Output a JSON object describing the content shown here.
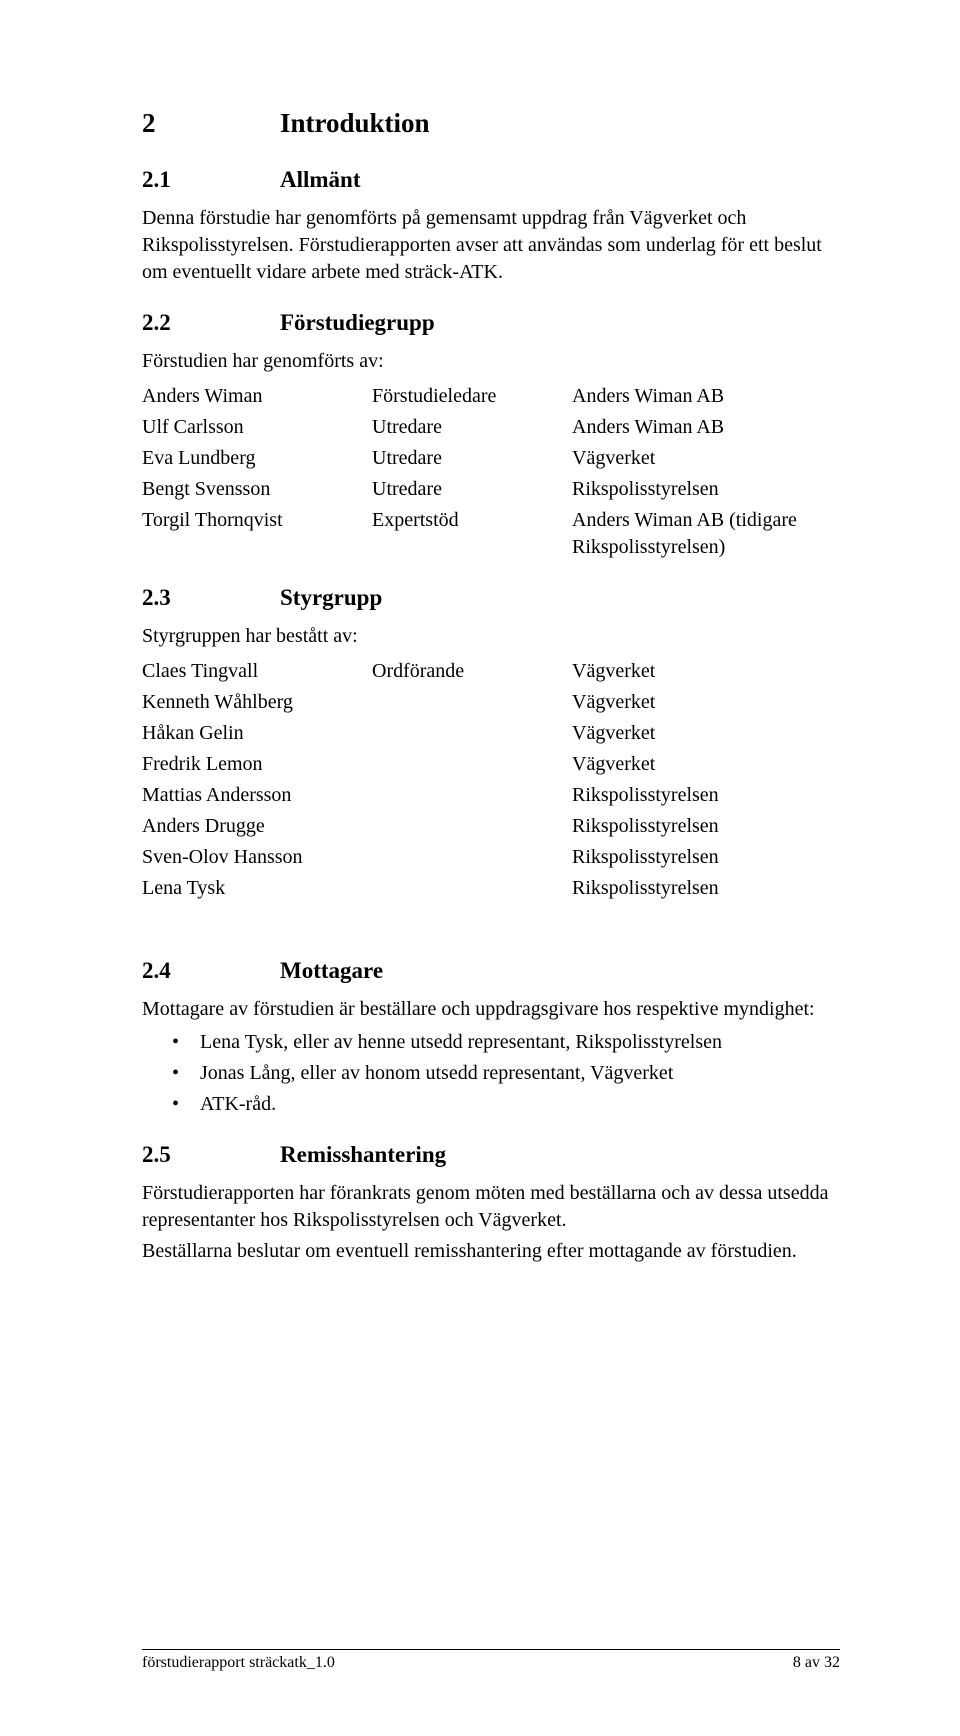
{
  "h1": {
    "num": "2",
    "title": "Introduktion"
  },
  "s21": {
    "num": "2.1",
    "title": "Allmänt",
    "para": "Denna förstudie har genomförts på gemensamt uppdrag från Vägverket och Rikspolisstyrelsen. Förstudierapporten avser att användas som underlag för ett beslut om eventuellt vidare arbete med sträck-ATK."
  },
  "s22": {
    "num": "2.2",
    "title": "Förstudiegrupp",
    "intro": "Förstudien har genomförts av:",
    "rows": [
      {
        "c1": "Anders Wiman",
        "c2": "Förstudieledare",
        "c3": "Anders Wiman AB"
      },
      {
        "c1": "Ulf Carlsson",
        "c2": "Utredare",
        "c3": "Anders Wiman AB"
      },
      {
        "c1": "Eva Lundberg",
        "c2": "Utredare",
        "c3": "Vägverket"
      },
      {
        "c1": "Bengt Svensson",
        "c2": "Utredare",
        "c3": "Rikspolisstyrelsen"
      },
      {
        "c1": "Torgil Thornqvist",
        "c2": "Expertstöd",
        "c3": "Anders Wiman AB (tidigare Rikspolisstyrelsen)"
      }
    ]
  },
  "s23": {
    "num": "2.3",
    "title": "Styrgrupp",
    "intro": "Styrgruppen har bestått av:",
    "rows": [
      {
        "c1": "Claes Tingvall",
        "c2": "Ordförande",
        "c3": "Vägverket"
      },
      {
        "c1": "Kenneth Wåhlberg",
        "c2": "",
        "c3": "Vägverket"
      },
      {
        "c1": "Håkan Gelin",
        "c2": "",
        "c3": "Vägverket"
      },
      {
        "c1": "Fredrik Lemon",
        "c2": "",
        "c3": "Vägverket"
      },
      {
        "c1": "Mattias Andersson",
        "c2": "",
        "c3": "Rikspolisstyrelsen"
      },
      {
        "c1": "Anders Drugge",
        "c2": "",
        "c3": "Rikspolisstyrelsen"
      },
      {
        "c1": "Sven-Olov Hansson",
        "c2": "",
        "c3": "Rikspolisstyrelsen"
      },
      {
        "c1": "Lena Tysk",
        "c2": "",
        "c3": "Rikspolisstyrelsen"
      }
    ]
  },
  "s24": {
    "num": "2.4",
    "title": "Mottagare",
    "para": "Mottagare av förstudien är beställare och uppdragsgivare hos respektive myndighet:",
    "bullets": [
      "Lena Tysk, eller av henne utsedd representant, Rikspolisstyrelsen",
      "Jonas Lång, eller av honom utsedd representant, Vägverket",
      "ATK-råd."
    ]
  },
  "s25": {
    "num": "2.5",
    "title": "Remisshantering",
    "p1": "Förstudierapporten har förankrats genom möten med beställarna och av dessa utsedda representanter hos Rikspolisstyrelsen och Vägverket.",
    "p2": "Beställarna beslutar om eventuell remisshantering efter mottagande av förstudien."
  },
  "footer": {
    "left": "förstudierapport sträckatk_1.0",
    "right": "8 av 32"
  },
  "bullet_char": "•"
}
